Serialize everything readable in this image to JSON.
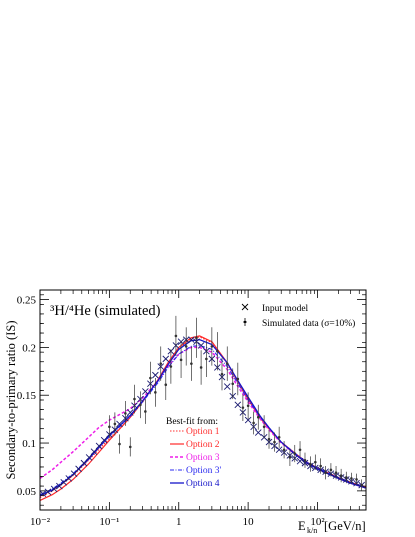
{
  "chart_data": {
    "type": "line",
    "title": "³H/⁴He (simulated)",
    "xlabel": "E_k/n [GeV/n]",
    "xlabel_main": "E",
    "xlabel_sub": "k/n",
    "xlabel_unit": "[GeV/n]",
    "ylabel": "Secondary-to-primary ratio (IS)",
    "x_scale": "log",
    "xlim": [
      0.01,
      500
    ],
    "ylim": [
      0.03,
      0.26
    ],
    "x_ticks": [
      "10⁻²",
      "10⁻¹",
      "1",
      "10",
      "10²"
    ],
    "y_ticks": [
      "0.05",
      "0.1",
      "0.15",
      "0.2",
      "0.25"
    ],
    "y_tick_values": [
      0.05,
      0.1,
      0.15,
      0.2,
      0.25
    ],
    "legend_top": [
      {
        "label": "Input model",
        "marker": "cross"
      },
      {
        "label": "Simulated data (σ=10%)",
        "marker": "point-errorbar"
      }
    ],
    "legend_bestfit_title": "Best-fit from:",
    "input_model_markers": {
      "x": [
        0.011,
        0.013,
        0.016,
        0.019,
        0.022,
        0.026,
        0.031,
        0.036,
        0.043,
        0.051,
        0.06,
        0.071,
        0.084,
        0.1,
        0.12,
        0.14,
        0.17,
        0.2,
        0.23,
        0.28,
        0.33,
        0.39,
        0.46,
        0.55,
        0.65,
        0.77,
        0.91,
        1.08,
        1.28,
        1.52,
        1.8,
        2.1,
        2.5,
        3.0,
        3.6,
        4.2,
        5.0,
        6.0,
        7.1,
        8.4,
        10,
        12,
        14,
        17,
        20,
        24,
        28,
        33,
        40,
        47,
        56,
        66,
        79,
        93,
        111,
        131,
        156,
        185,
        219,
        260,
        308,
        365,
        433
      ],
      "y": [
        0.047,
        0.049,
        0.052,
        0.055,
        0.059,
        0.063,
        0.068,
        0.073,
        0.079,
        0.085,
        0.091,
        0.097,
        0.103,
        0.109,
        0.114,
        0.12,
        0.126,
        0.132,
        0.139,
        0.146,
        0.154,
        0.162,
        0.171,
        0.18,
        0.188,
        0.196,
        0.202,
        0.206,
        0.208,
        0.208,
        0.206,
        0.202,
        0.196,
        0.188,
        0.179,
        0.169,
        0.159,
        0.149,
        0.14,
        0.132,
        0.124,
        0.117,
        0.111,
        0.106,
        0.101,
        0.097,
        0.093,
        0.09,
        0.087,
        0.084,
        0.081,
        0.079,
        0.076,
        0.074,
        0.072,
        0.07,
        0.068,
        0.066,
        0.064,
        0.062,
        0.06,
        0.058,
        0.056
      ]
    },
    "simulated_data": {
      "x": [
        0.1,
        0.12,
        0.14,
        0.17,
        0.2,
        0.23,
        0.28,
        0.33,
        0.39,
        0.46,
        0.55,
        0.65,
        0.77,
        0.91,
        1.08,
        1.28,
        1.52,
        1.8,
        2.1,
        2.5,
        3.0,
        3.6,
        4.2,
        5.0,
        6.0,
        7.1,
        8.4,
        10,
        12,
        14,
        17,
        20,
        24,
        28,
        33,
        40,
        47,
        56,
        66,
        79,
        93,
        111,
        131,
        156,
        185,
        219,
        260,
        308,
        365,
        433
      ],
      "y": [
        0.117,
        0.12,
        0.099,
        0.131,
        0.096,
        0.146,
        0.14,
        0.133,
        0.168,
        0.153,
        0.183,
        0.161,
        0.18,
        0.212,
        0.187,
        0.201,
        0.183,
        0.21,
        0.179,
        0.188,
        0.201,
        0.196,
        0.172,
        0.183,
        0.162,
        0.167,
        0.137,
        0.139,
        0.121,
        0.127,
        0.117,
        0.104,
        0.101,
        0.106,
        0.093,
        0.085,
        0.089,
        0.093,
        0.082,
        0.078,
        0.08,
        0.076,
        0.069,
        0.072,
        0.069,
        0.066,
        0.064,
        0.063,
        0.062,
        0.056
      ],
      "err": [
        0.012,
        0.012,
        0.01,
        0.013,
        0.01,
        0.015,
        0.014,
        0.013,
        0.017,
        0.015,
        0.018,
        0.016,
        0.018,
        0.021,
        0.019,
        0.02,
        0.018,
        0.021,
        0.018,
        0.019,
        0.02,
        0.02,
        0.017,
        0.018,
        0.016,
        0.017,
        0.014,
        0.014,
        0.012,
        0.013,
        0.012,
        0.01,
        0.01,
        0.011,
        0.009,
        0.009,
        0.009,
        0.009,
        0.008,
        0.008,
        0.008,
        0.008,
        0.007,
        0.007,
        0.007,
        0.007,
        0.006,
        0.006,
        0.006,
        0.006
      ]
    },
    "series": [
      {
        "name": "Option 1",
        "color": "#ff3030",
        "dash": "1.5,1.5",
        "width": 1.1,
        "x": [
          0.01,
          0.015,
          0.02,
          0.03,
          0.05,
          0.07,
          0.1,
          0.15,
          0.2,
          0.3,
          0.5,
          0.7,
          1,
          1.5,
          2,
          3,
          5,
          7,
          10,
          15,
          20,
          30,
          50,
          70,
          100,
          200,
          300,
          500
        ],
        "y": [
          0.043,
          0.05,
          0.056,
          0.066,
          0.082,
          0.093,
          0.105,
          0.117,
          0.127,
          0.143,
          0.166,
          0.183,
          0.198,
          0.209,
          0.211,
          0.205,
          0.183,
          0.164,
          0.145,
          0.126,
          0.115,
          0.101,
          0.088,
          0.08,
          0.074,
          0.064,
          0.059,
          0.054
        ]
      },
      {
        "name": "Option 2",
        "color": "#ff2a2a",
        "dash": "",
        "width": 1.2,
        "x": [
          0.01,
          0.015,
          0.02,
          0.03,
          0.05,
          0.07,
          0.1,
          0.15,
          0.2,
          0.3,
          0.5,
          0.7,
          1,
          1.5,
          2,
          3,
          5,
          7,
          10,
          15,
          20,
          30,
          50,
          70,
          100,
          200,
          300,
          500
        ],
        "y": [
          0.04,
          0.046,
          0.052,
          0.062,
          0.078,
          0.09,
          0.103,
          0.117,
          0.127,
          0.143,
          0.166,
          0.184,
          0.2,
          0.21,
          0.212,
          0.206,
          0.184,
          0.165,
          0.146,
          0.126,
          0.115,
          0.101,
          0.088,
          0.08,
          0.074,
          0.064,
          0.059,
          0.054
        ]
      },
      {
        "name": "Option 3",
        "color": "#ee1ee8",
        "dash": "3,2",
        "width": 1.5,
        "x": [
          0.01,
          0.015,
          0.02,
          0.03,
          0.05,
          0.07,
          0.1,
          0.15,
          0.2,
          0.3,
          0.5,
          0.7,
          1,
          1.5,
          2,
          3,
          5,
          7,
          10,
          15,
          20,
          30,
          50,
          70,
          100,
          200,
          300,
          500
        ],
        "y": [
          0.063,
          0.072,
          0.08,
          0.091,
          0.106,
          0.116,
          0.124,
          0.131,
          0.136,
          0.147,
          0.165,
          0.18,
          0.193,
          0.2,
          0.2,
          0.195,
          0.177,
          0.16,
          0.143,
          0.125,
          0.114,
          0.1,
          0.087,
          0.079,
          0.073,
          0.063,
          0.058,
          0.053
        ]
      },
      {
        "name": "Option 3'",
        "color": "#2a2af0",
        "dash": "4,1.5,1,1.5",
        "width": 1.1,
        "x": [
          0.01,
          0.015,
          0.02,
          0.03,
          0.05,
          0.07,
          0.1,
          0.15,
          0.2,
          0.3,
          0.5,
          0.7,
          1,
          1.5,
          2,
          3,
          5,
          7,
          10,
          15,
          20,
          30,
          50,
          70,
          100,
          200,
          300,
          500
        ],
        "y": [
          0.046,
          0.052,
          0.058,
          0.068,
          0.084,
          0.095,
          0.107,
          0.119,
          0.128,
          0.143,
          0.163,
          0.179,
          0.193,
          0.201,
          0.202,
          0.198,
          0.18,
          0.163,
          0.145,
          0.127,
          0.116,
          0.101,
          0.088,
          0.08,
          0.074,
          0.064,
          0.059,
          0.054
        ]
      },
      {
        "name": "Option 4",
        "color": "#1515c8",
        "dash": "",
        "width": 1.3,
        "x": [
          0.01,
          0.015,
          0.02,
          0.03,
          0.05,
          0.07,
          0.1,
          0.15,
          0.2,
          0.3,
          0.5,
          0.7,
          1,
          1.5,
          2,
          3,
          5,
          7,
          10,
          15,
          20,
          30,
          50,
          70,
          100,
          200,
          300,
          500
        ],
        "y": [
          0.045,
          0.051,
          0.057,
          0.067,
          0.083,
          0.095,
          0.108,
          0.12,
          0.129,
          0.144,
          0.165,
          0.182,
          0.198,
          0.207,
          0.208,
          0.203,
          0.184,
          0.166,
          0.148,
          0.128,
          0.116,
          0.101,
          0.087,
          0.079,
          0.073,
          0.063,
          0.058,
          0.053
        ]
      }
    ]
  }
}
